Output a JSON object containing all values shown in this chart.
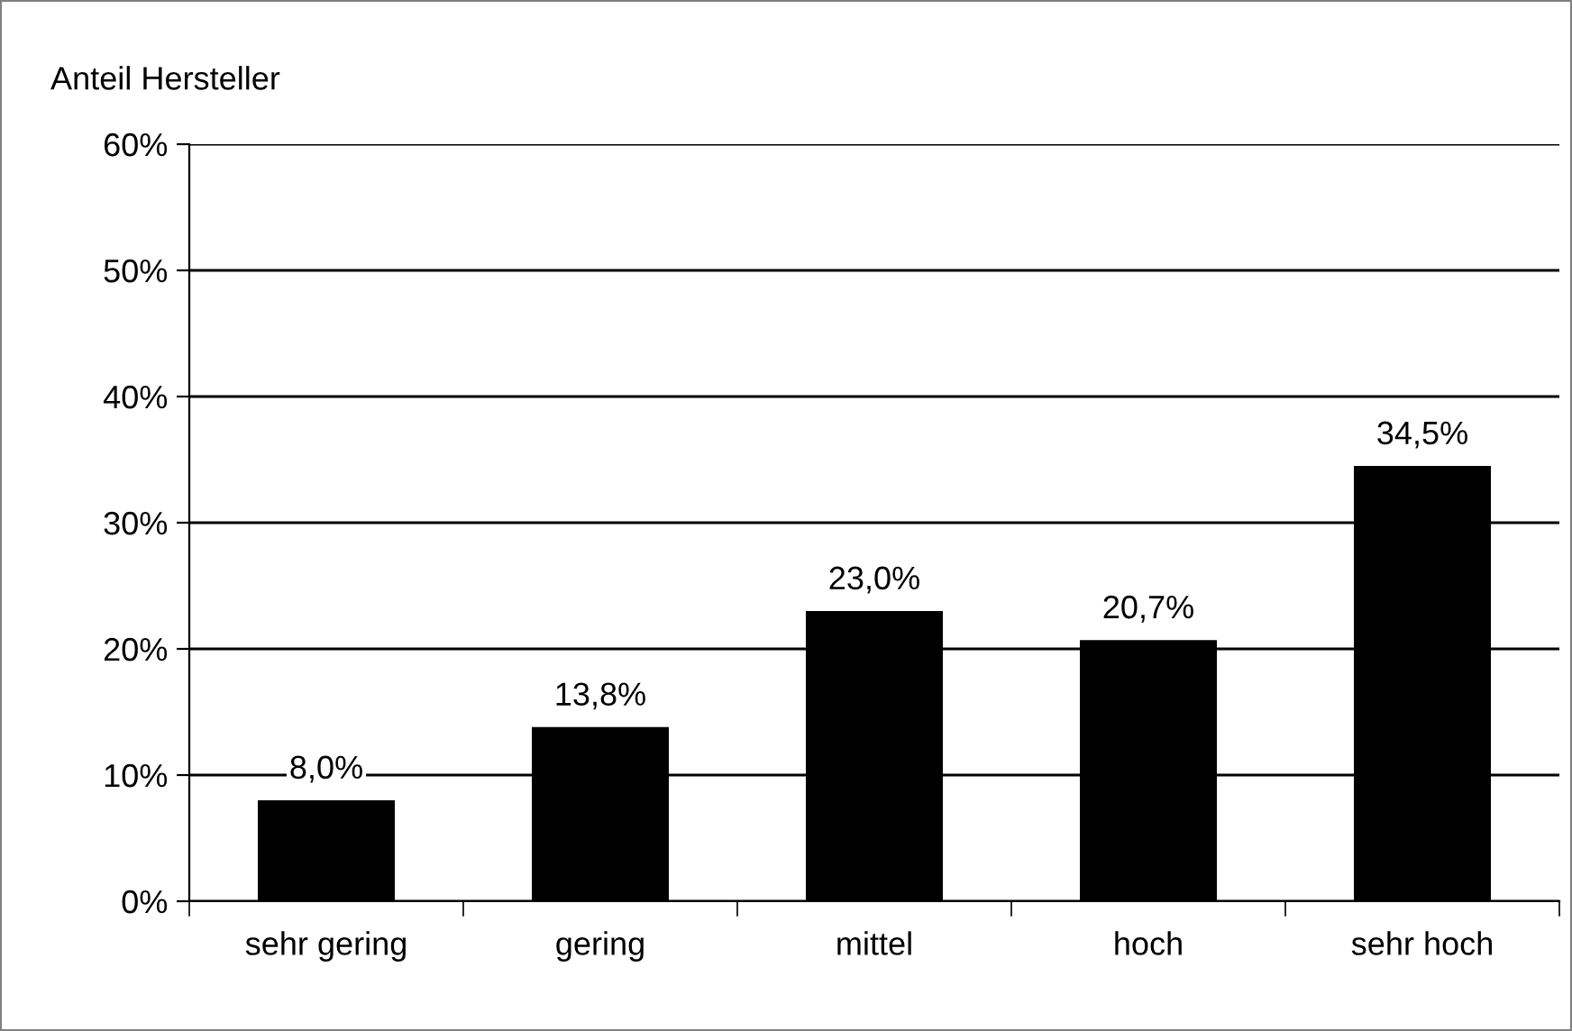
{
  "chart_data": {
    "type": "bar",
    "ylabel": "Anteil Hersteller",
    "categories": [
      "sehr gering",
      "gering",
      "mittel",
      "hoch",
      "sehr hoch"
    ],
    "values": [
      8.0,
      13.8,
      23.0,
      20.7,
      34.5
    ],
    "value_labels": [
      "8,0%",
      "13,8%",
      "23,0%",
      "20,7%",
      "34,5%"
    ],
    "color": "#000000",
    "ylim": [
      0,
      60
    ],
    "yticks": [
      {
        "value": 0,
        "label": "0%"
      },
      {
        "value": 10,
        "label": "10%"
      },
      {
        "value": 20,
        "label": "20%"
      },
      {
        "value": 30,
        "label": "30%"
      },
      {
        "value": 40,
        "label": "40%"
      },
      {
        "value": 50,
        "label": "50%"
      },
      {
        "value": 60,
        "label": "60%"
      }
    ],
    "grid": "y",
    "legend": false
  }
}
